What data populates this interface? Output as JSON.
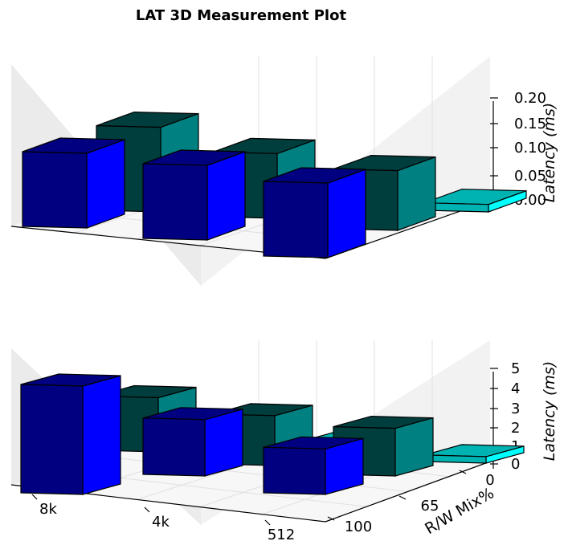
{
  "title": "LAT 3D Measurement Plot",
  "colors": {
    "mix_100_front": "#000080",
    "mix_100_side": "#0000ff",
    "mix_65_front": "#003d3d",
    "mix_65_side": "#008080",
    "mix_0_front": "#00b3b3",
    "mix_0_side": "#00ffff",
    "pane_back": "#f2f2f2",
    "pane_side": "#ebebeb",
    "grid": "#e0e0e0"
  },
  "chart_data": [
    {
      "type": "bar3d",
      "zlabel": "Latency (ms)",
      "zlim": [
        0,
        0.2
      ],
      "z_ticks": [
        "0.00",
        "0.05",
        "0.10",
        "0.15",
        "0.20"
      ],
      "x_categories": [
        "8k",
        "4k",
        "512"
      ],
      "y_categories": [
        "100",
        "65",
        "0"
      ],
      "series": [
        {
          "mix": "100",
          "values": [
            0.15,
            0.15,
            0.15
          ]
        },
        {
          "mix": "65",
          "values": [
            0.17,
            0.13,
            0.12
          ]
        },
        {
          "mix": "0",
          "values": [
            0.015,
            0.015,
            0.015
          ]
        }
      ]
    },
    {
      "type": "bar3d",
      "zlabel": "Latency (ms)",
      "xlabel": "",
      "ylabel": "R/W Mix%",
      "zlim": [
        0,
        5
      ],
      "z_ticks": [
        "0",
        "1",
        "2",
        "3",
        "4",
        "5"
      ],
      "x_categories": [
        "8k",
        "4k",
        "512"
      ],
      "y_categories": [
        "100",
        "65",
        "0"
      ],
      "series": [
        {
          "mix": "100",
          "values": [
            5.0,
            2.6,
            2.1
          ]
        },
        {
          "mix": "65",
          "values": [
            2.5,
            2.3,
            2.2
          ]
        },
        {
          "mix": "0",
          "values": [
            0.3,
            0.3,
            0.3
          ]
        }
      ]
    }
  ]
}
